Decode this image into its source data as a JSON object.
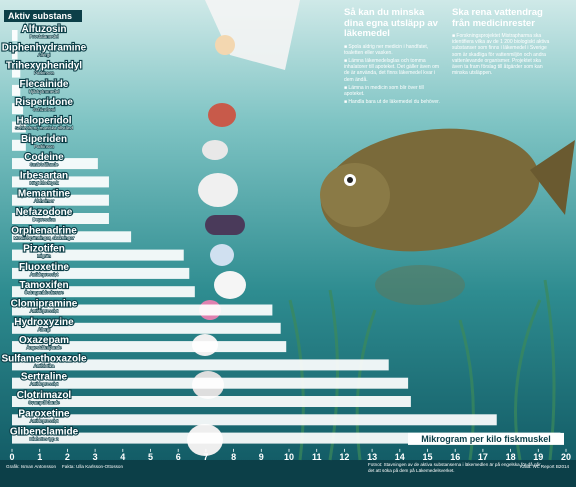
{
  "chart_data": {
    "type": "bar",
    "orientation": "horizontal",
    "category_header": "Aktiv substans",
    "x_label": "Mikrogram per kilo fiskmuskel",
    "categories": [
      "Alfuzosin",
      "Diphenhydramine",
      "Trihexyphenidyl",
      "Flecainide",
      "Risperidone",
      "Haloperidol",
      "Biperiden",
      "Codeine",
      "Irbesartan",
      "Memantine",
      "Nefazodone",
      "Orphenadrine",
      "Pizotifen",
      "Fluoxetine",
      "Tamoxifen",
      "Clomipramine",
      "Hydroxyzine",
      "Oxazepam",
      "Sulfamethoxazole",
      "Sertraline",
      "Clotrimazol",
      "Paroxetine",
      "Glibenclamide"
    ],
    "sublabels": [
      "Prostatamedel",
      "Allergi",
      "Parkinson",
      "Hjärtrytmmedel",
      "Schizofreni",
      "Schizofreni, maniska tillstånd",
      "Parkinson",
      "Smärtstillande",
      "Högt blodtryck",
      "Alzheimer",
      "Depression",
      "Muskelspänningar, skakningar",
      "Migrän",
      "Antidepressivt",
      "Östrogenblockerare",
      "Antidepressivt",
      "Allergi",
      "Ångestdämpande",
      "Antibiotika",
      "Antidepressivt",
      "Svampdödande",
      "Antidepressivt",
      "Diabetes typ 2"
    ],
    "values": [
      0.2,
      0.2,
      0.3,
      0.3,
      0.4,
      0.5,
      0.5,
      3.1,
      3.5,
      3.5,
      3.5,
      4.3,
      6.2,
      6.4,
      6.6,
      9.4,
      9.7,
      9.9,
      13.6,
      14.3,
      14.4,
      17.5,
      19.8
    ],
    "color": "#ffffff",
    "xlim": [
      0,
      20
    ],
    "xticks": [
      0,
      1,
      2,
      3,
      4,
      5,
      6,
      7,
      8,
      9,
      10,
      11,
      12,
      13,
      14,
      15,
      16,
      17,
      18,
      19,
      20
    ]
  },
  "tips": {
    "title": "Så kan du minska dina egna utsläpp av läkemedel",
    "items": [
      "Spola aldrig ner medicin i handfatet, toaletten eller vasken.",
      "Lämna läkemedelsglas och tomma inhalatorer till apoteket. Det gäller även om de är använda, det finns läkemedel kvar i dem ändå.",
      "Lämna in medicin som blir över till apoteket.",
      "Handla bara ut de läkemedel du behöver."
    ]
  },
  "project": {
    "title": "Ska rena vattendrag från medicinrester",
    "text": "Forskningsprojektet Mistrapharma ska identifiera vilka av de 1 200 biologiskt aktiva substanser som finns i läkemedel i Sverige som är skadliga för vattenmiljön och andra vattenlevande organismer. Projektet ska även ta fram förslag till åtgärder som kan minska utsläppen."
  },
  "footer": {
    "graphics": "Grafik: Isman Antonsson",
    "facts": "Fakta: Ulla Karlsson-Ottosson",
    "note": "Fotnot: Stavningen av de aktiva substanserna i läkemedlen är på engelska för då går det att söka på dem på Läkemedelsverket.",
    "source": "Källa: IVL Report B2014"
  }
}
